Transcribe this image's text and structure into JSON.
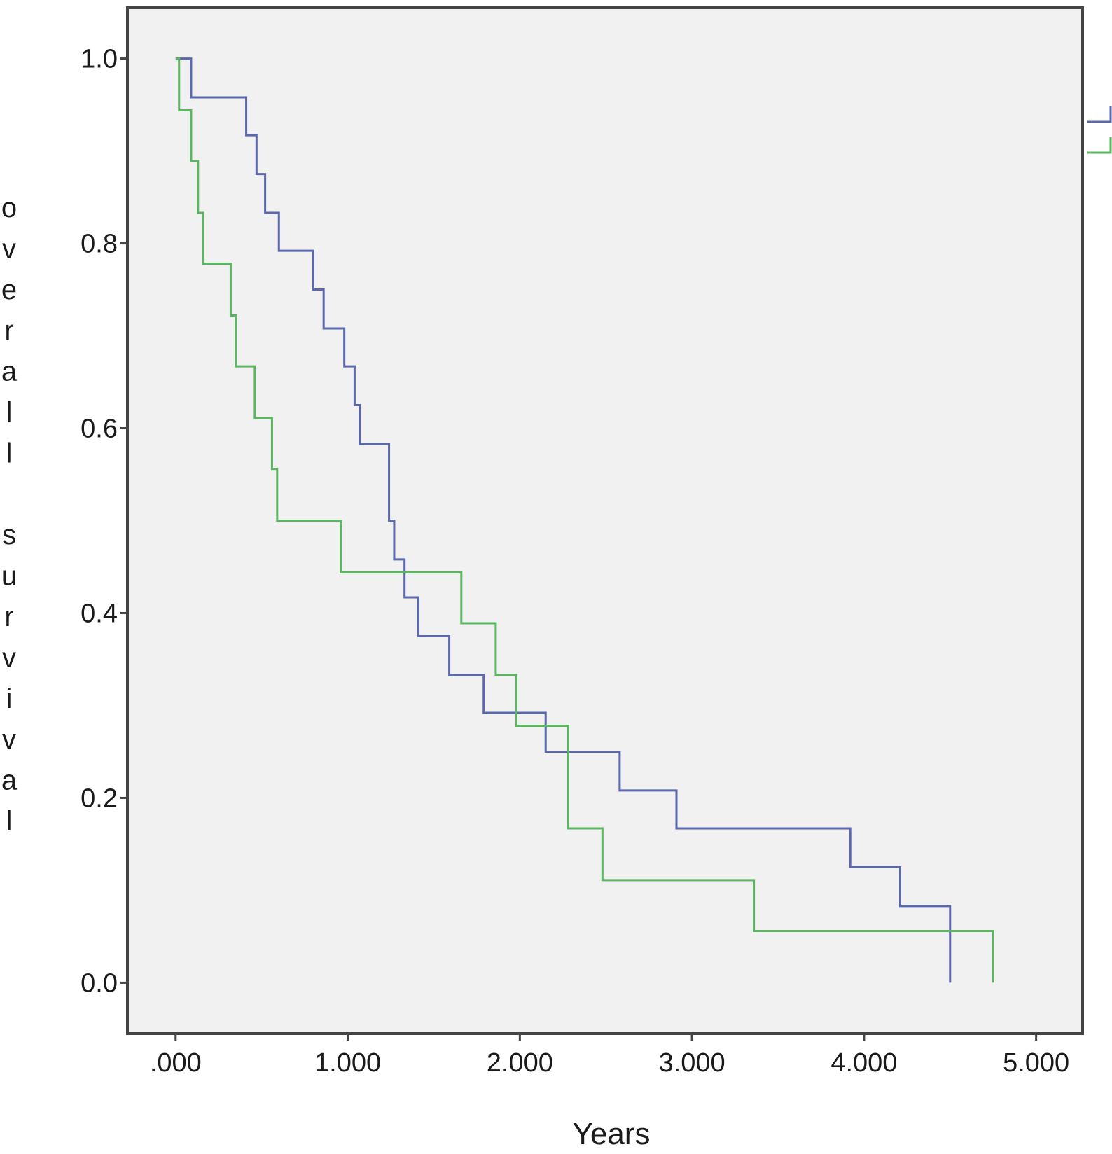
{
  "chart_data": {
    "type": "line",
    "step": true,
    "title": "",
    "xlabel": "Years",
    "ylabel": "overall survival",
    "xlim": [
      -0.28,
      5.27
    ],
    "ylim": [
      -0.055,
      1.055
    ],
    "xticks": [
      0,
      1,
      2,
      3,
      4,
      5
    ],
    "xtick_labels": [
      ".000",
      "1.000",
      "2.000",
      "3.000",
      "4.000",
      "5.000"
    ],
    "yticks": [
      0.0,
      0.2,
      0.4,
      0.6,
      0.8,
      1.0
    ],
    "ytick_labels": [
      "0.0",
      "0.2",
      "0.4",
      "0.6",
      "0.8",
      "1.0"
    ],
    "grid": false,
    "background": "#f0f1f0",
    "legend": "right (partially cropped, no visible text)",
    "series": [
      {
        "color": "#5b68ad",
        "x": [
          0.0,
          0.09,
          0.41,
          0.47,
          0.52,
          0.6,
          0.8,
          0.86,
          0.98,
          1.04,
          1.07,
          1.24,
          1.27,
          1.33,
          1.41,
          1.59,
          1.79,
          2.15,
          2.58,
          2.91,
          3.92,
          4.21,
          4.5
        ],
        "y": [
          1.0,
          0.958,
          0.917,
          0.875,
          0.833,
          0.792,
          0.75,
          0.708,
          0.667,
          0.625,
          0.583,
          0.5,
          0.458,
          0.417,
          0.375,
          0.333,
          0.292,
          0.25,
          0.208,
          0.167,
          0.125,
          0.083,
          0.042
        ],
        "end_x": 4.5,
        "end_y": 0.0
      },
      {
        "color": "#5cb561",
        "x": [
          0.0,
          0.02,
          0.09,
          0.13,
          0.16,
          0.32,
          0.35,
          0.46,
          0.56,
          0.59,
          0.96,
          1.66,
          1.86,
          1.98,
          2.28,
          2.48,
          3.36
        ],
        "y": [
          1.0,
          0.944,
          0.889,
          0.833,
          0.778,
          0.722,
          0.667,
          0.611,
          0.556,
          0.5,
          0.444,
          0.389,
          0.333,
          0.278,
          0.167,
          0.111,
          0.056
        ],
        "end_x": 4.75,
        "end_y": 0.0
      }
    ]
  }
}
